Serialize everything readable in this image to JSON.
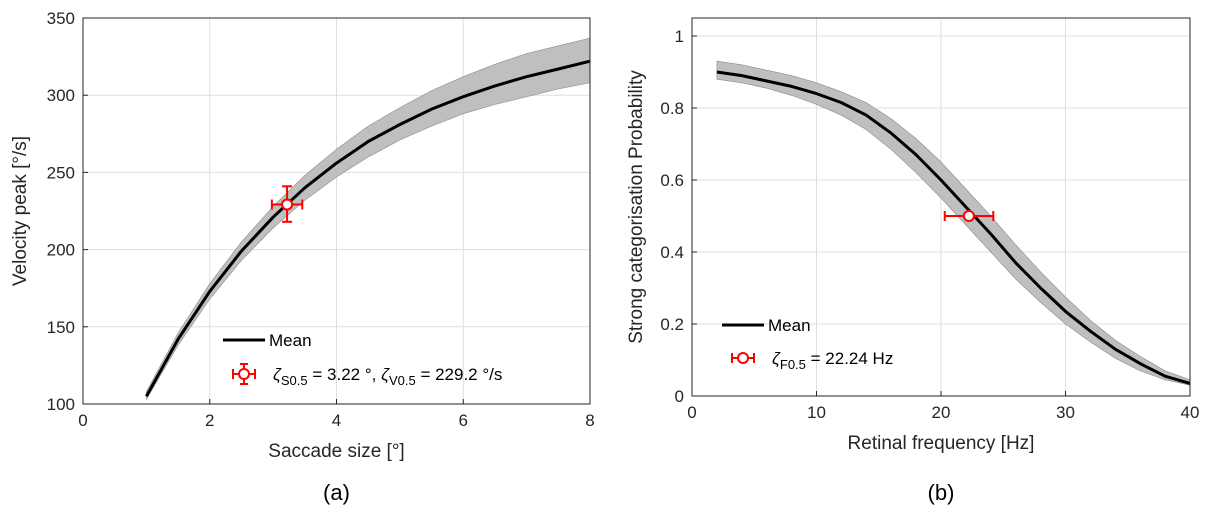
{
  "chart_data": [
    {
      "type": "line",
      "panel_label": "(a)",
      "xlabel": "Saccade size [°]",
      "ylabel": "Velocity peak [°/s]",
      "xlim": [
        0,
        8
      ],
      "ylim": [
        100,
        350
      ],
      "xticks": [
        0,
        2,
        4,
        6,
        8
      ],
      "yticks": [
        100,
        150,
        200,
        250,
        300,
        350
      ],
      "grid": true,
      "legend_position": "bottom-right",
      "series": [
        {
          "name": "Mean",
          "x": [
            1,
            1.5,
            2,
            2.5,
            3,
            3.5,
            4,
            4.5,
            5,
            5.5,
            6,
            6.5,
            7,
            7.5,
            8
          ],
          "y": [
            105,
            142,
            173,
            199,
            221,
            240,
            256,
            270,
            281,
            291,
            299,
            306,
            312,
            317,
            322
          ],
          "band_lower": [
            103,
            138,
            168,
            193,
            214,
            232,
            247,
            260,
            271,
            280,
            288,
            294,
            299,
            304,
            308
          ],
          "band_upper": [
            108,
            146,
            178,
            205,
            228,
            248,
            265,
            280,
            292,
            303,
            312,
            320,
            327,
            332,
            337
          ],
          "color": "#000000",
          "band_color": "#bfbfbf"
        }
      ],
      "marker": {
        "legend_label": "ζS0.5 = 3.22 °, ζV0.5 = 229.2 °/s",
        "legend_parts": {
          "zeta1": "ζ",
          "sub1": "S0.5",
          "mid": " = 3.22 °, ",
          "zeta2": "ζ",
          "sub2": "V0.5",
          "tail": " = 229.2 °/s"
        },
        "x": 3.22,
        "y": 229.2,
        "x_err": [
          2.98,
          3.46
        ],
        "y_err": [
          218,
          241
        ],
        "color": "#ff0000"
      }
    },
    {
      "type": "line",
      "panel_label": "(b)",
      "xlabel": "Retinal frequency [Hz]",
      "ylabel": "Strong categorisation Probability",
      "xlim": [
        0,
        40
      ],
      "ylim": [
        0,
        1.05
      ],
      "xticks": [
        0,
        10,
        20,
        30,
        40
      ],
      "yticks": [
        0,
        0.2,
        0.4,
        0.6,
        0.8,
        1
      ],
      "grid": true,
      "legend_position": "bottom-left",
      "series": [
        {
          "name": "Mean",
          "x": [
            2,
            4,
            6,
            8,
            10,
            12,
            14,
            16,
            18,
            20,
            22,
            24,
            26,
            28,
            30,
            32,
            34,
            36,
            38,
            40
          ],
          "y": [
            0.9,
            0.89,
            0.875,
            0.86,
            0.84,
            0.815,
            0.78,
            0.73,
            0.67,
            0.6,
            0.525,
            0.45,
            0.37,
            0.3,
            0.235,
            0.18,
            0.13,
            0.09,
            0.055,
            0.035
          ],
          "band_lower": [
            0.88,
            0.87,
            0.855,
            0.835,
            0.81,
            0.78,
            0.74,
            0.685,
            0.62,
            0.55,
            0.475,
            0.4,
            0.325,
            0.26,
            0.2,
            0.15,
            0.105,
            0.07,
            0.045,
            0.03
          ],
          "band_upper": [
            0.93,
            0.92,
            0.905,
            0.89,
            0.87,
            0.845,
            0.815,
            0.77,
            0.715,
            0.65,
            0.575,
            0.5,
            0.42,
            0.345,
            0.275,
            0.21,
            0.155,
            0.11,
            0.07,
            0.045
          ],
          "color": "#000000",
          "band_color": "#bfbfbf"
        }
      ],
      "marker": {
        "legend_label": "ζF0.5 = 22.24 Hz",
        "legend_parts": {
          "zeta1": "ζ",
          "sub1": "F0.5",
          "tail": " = 22.24 Hz"
        },
        "x": 22.24,
        "y": 0.5,
        "x_err": [
          20.3,
          24.2
        ],
        "color": "#ff0000"
      }
    }
  ]
}
